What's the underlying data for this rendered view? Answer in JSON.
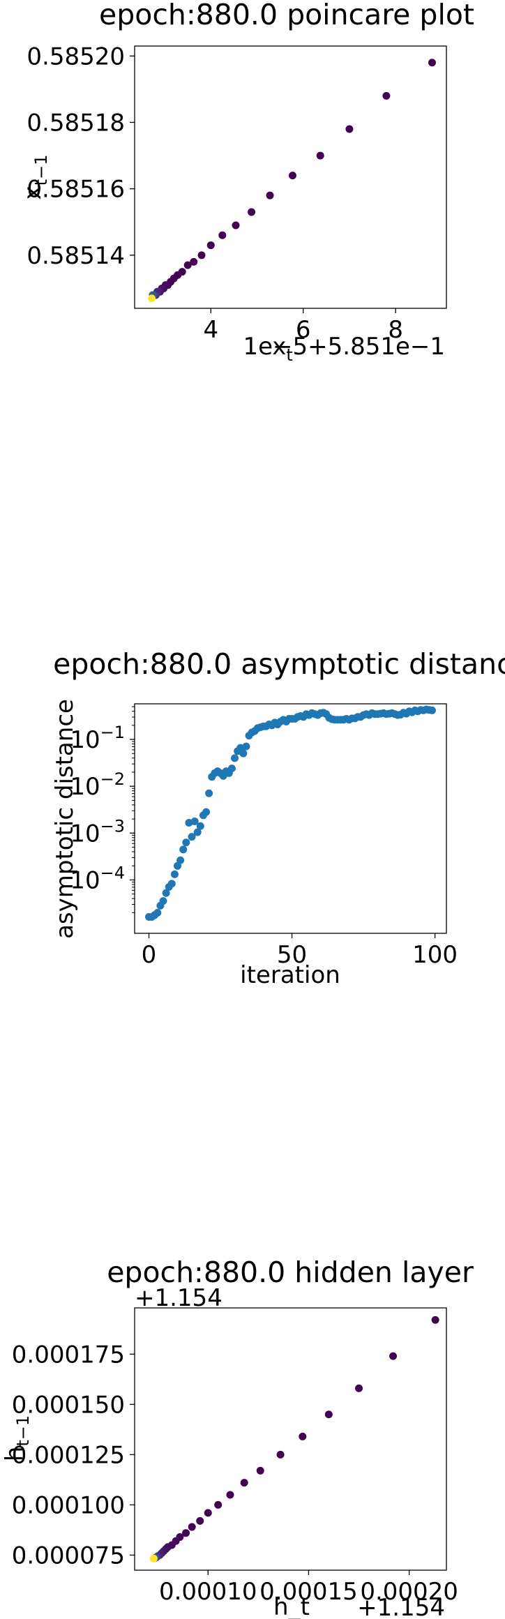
{
  "chart_data": [
    {
      "type": "scatter",
      "title": "epoch:880.0 poincare plot",
      "xlabel": "x_t",
      "ylabel": "x_{t-1}",
      "x_offset_text": "1e−5+5.851e−1",
      "x_unit_scale": 1e-05,
      "x_base": 0.5851,
      "colormap": "viridis",
      "xlim": [
        2.35,
        9.1
      ],
      "ylim": [
        0.585124,
        0.585203
      ],
      "x_ticks": [
        4,
        6,
        8
      ],
      "y_ticks": [
        0.58514,
        0.58516,
        0.58518,
        0.5852
      ],
      "x_tick_labels": [
        "4",
        "6",
        "8"
      ],
      "y_tick_labels": [
        "0.58514",
        "0.58516",
        "0.58518",
        "0.58520"
      ],
      "x": [
        8.79,
        7.8,
        7.0,
        6.37,
        5.77,
        5.28,
        4.88,
        4.54,
        4.25,
        4.0,
        3.8,
        3.63,
        3.5,
        3.38,
        3.28,
        3.2,
        3.13,
        3.07,
        3.02,
        2.98,
        2.94,
        2.9,
        2.87,
        2.84,
        2.81,
        2.78,
        2.76,
        2.74,
        2.72
      ],
      "y": [
        0.585198,
        0.585188,
        0.585178,
        0.58517,
        0.585164,
        0.585158,
        0.585153,
        0.585149,
        0.585146,
        0.585143,
        0.58514,
        0.585138,
        0.585137,
        0.585135,
        0.585134,
        0.585133,
        0.585132,
        0.585131,
        0.585131,
        0.58513,
        0.58513,
        0.585129,
        0.585129,
        0.585129,
        0.585128,
        0.585128,
        0.585128,
        0.585128,
        0.585127
      ]
    },
    {
      "type": "scatter",
      "title": "epoch:880.0 asymptotic distance",
      "xlabel": "iteration",
      "ylabel": "asymptotic distance",
      "yscale": "log",
      "color": "#1f77b4",
      "xlim": [
        -5,
        104
      ],
      "ylim_log10": [
        -5.14,
        -0.24
      ],
      "x_ticks": [
        0,
        50,
        100
      ],
      "x_tick_labels": [
        "0",
        "50",
        "100"
      ],
      "y_tick_labels": [
        {
          "base": "10",
          "exp": "−1",
          "value": 0.1
        },
        {
          "base": "10",
          "exp": "−2",
          "value": 0.01
        },
        {
          "base": "10",
          "exp": "−3",
          "value": 0.001
        },
        {
          "base": "10",
          "exp": "−4",
          "value": 0.0001
        }
      ],
      "x": [
        0,
        1,
        2,
        3,
        4,
        5,
        6,
        7,
        8,
        9,
        10,
        11,
        12,
        13,
        14,
        15,
        16,
        17,
        18,
        19,
        20,
        21,
        22,
        23,
        24,
        25,
        26,
        27,
        28,
        29,
        30,
        31,
        32,
        33,
        34,
        35,
        36,
        37,
        38,
        39,
        40,
        41,
        42,
        43,
        44,
        45,
        46,
        47,
        48,
        49,
        50,
        51,
        52,
        53,
        54,
        55,
        56,
        57,
        58,
        59,
        60,
        61,
        62,
        63,
        64,
        65,
        66,
        67,
        68,
        69,
        70,
        71,
        72,
        73,
        74,
        75,
        76,
        77,
        78,
        79,
        80,
        81,
        82,
        83,
        84,
        85,
        86,
        87,
        88,
        89,
        90,
        91,
        92,
        93,
        94,
        95,
        96,
        97,
        98,
        99
      ],
      "log10_y": [
        -4.79,
        -4.79,
        -4.75,
        -4.7,
        -4.55,
        -4.45,
        -4.28,
        -4.15,
        -4.08,
        -3.88,
        -3.7,
        -3.58,
        -3.35,
        -3.2,
        -2.78,
        -3.08,
        -2.75,
        -2.98,
        -2.85,
        -2.62,
        -2.55,
        -2.15,
        -1.8,
        -1.72,
        -1.68,
        -1.72,
        -1.78,
        -1.68,
        -1.72,
        -1.62,
        -1.4,
        -1.25,
        -1.18,
        -1.3,
        -1.15,
        -0.92,
        -0.85,
        -0.82,
        -0.76,
        -0.74,
        -0.72,
        -0.72,
        -0.68,
        -0.7,
        -0.64,
        -0.68,
        -0.62,
        -0.58,
        -0.62,
        -0.56,
        -0.56,
        -0.56,
        -0.52,
        -0.5,
        -0.52,
        -0.46,
        -0.48,
        -0.44,
        -0.46,
        -0.48,
        -0.44,
        -0.43,
        -0.46,
        -0.54,
        -0.57,
        -0.58,
        -0.58,
        -0.58,
        -0.58,
        -0.56,
        -0.58,
        -0.55,
        -0.55,
        -0.52,
        -0.52,
        -0.48,
        -0.46,
        -0.48,
        -0.44,
        -0.46,
        -0.46,
        -0.45,
        -0.44,
        -0.46,
        -0.45,
        -0.44,
        -0.46,
        -0.48,
        -0.47,
        -0.43,
        -0.45,
        -0.4,
        -0.42,
        -0.38,
        -0.4,
        -0.37,
        -0.38,
        -0.36,
        -0.37,
        -0.38
      ]
    },
    {
      "type": "scatter",
      "title": "epoch:880.0 hidden layer",
      "xlabel": "h_t",
      "ylabel": "h_{t-1}",
      "x_offset_text": "+1.154",
      "y_offset_text": "+1.154",
      "x_base": 1.154,
      "y_base": 1.154,
      "colormap": "viridis",
      "xlim": [
        6.35e-05,
        0.0002185
      ],
      "ylim": [
        6.75e-05,
        0.000198
      ],
      "x_ticks": [
        0.0001,
        0.00015,
        0.0002
      ],
      "y_ticks": [
        7.5e-05,
        0.0001,
        0.000125,
        0.00015,
        0.000175
      ],
      "x_tick_labels": [
        "0.00010",
        "0.00015",
        "0.00020"
      ],
      "y_tick_labels": [
        "0.000075",
        "0.000100",
        "0.000125",
        "0.000150",
        "0.000175"
      ],
      "x": [
        0.000213,
        0.000192,
        0.000175,
        0.00016,
        0.000147,
        0.000136,
        0.000126,
        0.000118,
        0.000111,
        0.000105,
        0.0001,
        9.6e-05,
        9.2e-05,
        8.9e-05,
        8.6e-05,
        8.4e-05,
        8.2e-05,
        8e-05,
        7.9e-05,
        7.8e-05,
        7.7e-05,
        7.6e-05,
        7.5e-05,
        7.45e-05,
        7.4e-05,
        7.35e-05,
        7.3e-05
      ],
      "y": [
        0.000192,
        0.000174,
        0.000158,
        0.000145,
        0.000134,
        0.000125,
        0.000117,
        0.000111,
        0.000105,
        0.0001,
        9.6e-05,
        9.2e-05,
        8.9e-05,
        8.6e-05,
        8.4e-05,
        8.2e-05,
        8e-05,
        7.9e-05,
        7.8e-05,
        7.7e-05,
        7.6e-05,
        7.5e-05,
        7.45e-05,
        7.4e-05,
        7.38e-05,
        7.35e-05,
        7.33e-05
      ]
    }
  ]
}
